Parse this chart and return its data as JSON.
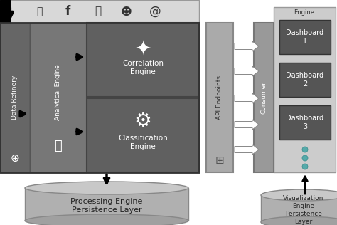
{
  "bg_color": "#ffffff",
  "black": "#000000",
  "white": "#ffffff",
  "dark_gray": "#555555",
  "med_gray": "#777777",
  "light_gray": "#aaaaaa",
  "lighter_gray": "#d0d0d0",
  "top_bar_color": "#d8d8d8",
  "data_refinery_color": "#666666",
  "analytical_color": "#777777",
  "engine_box_color": "#666666",
  "api_bar_color": "#aaaaaa",
  "consumer_bar_color": "#999999",
  "right_panel_bg": "#cccccc",
  "dashboard_box_color": "#555555",
  "cylinder_body": "#b0b0b0",
  "cylinder_top": "#c8c8c8",
  "cylinder_bot": "#a0a0a0",
  "dot_color": "#55aaaa",
  "persistence_label1": "Processing Engine\nPersistence Layer",
  "persistence_label2": "Visualization\nEngine\nPersistence\nLayer",
  "dashboard_labels": [
    "Dashboard\n1",
    "Dashboard\n2",
    "Dashboard\n3"
  ],
  "social_icons": [
    "Τ",
    "f",
    "ⓘ",
    "☻",
    "@"
  ]
}
